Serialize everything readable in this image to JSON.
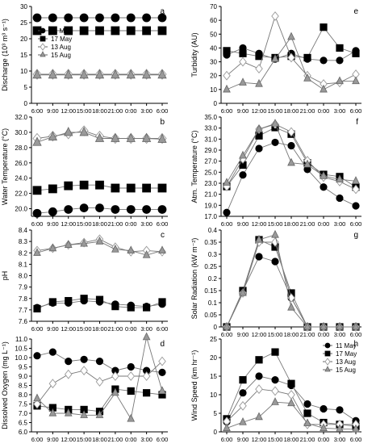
{
  "x_ticks": [
    "6:00",
    "9:00",
    "12:00",
    "15:00",
    "18:00",
    "21:00",
    "0:00",
    "3:00",
    "6:00"
  ],
  "series_names": [
    "11 May",
    "17 May",
    "13 Aug",
    "15 Aug"
  ],
  "colors": {
    "may11": "#000000",
    "may17": "#000000",
    "aug13": "#999999",
    "aug15": "#999999",
    "axis": "#000000"
  },
  "markers": [
    "filled-circle",
    "filled-square",
    "open-diamond",
    "filled-triangle"
  ],
  "chart_data": [
    {
      "type": "line",
      "panel": "a",
      "ylabel": "Discharge (10³ m³ s⁻¹)",
      "ylim": [
        0,
        30
      ],
      "yticks": [
        0,
        5,
        10,
        15,
        20,
        25,
        30
      ],
      "legend": "left",
      "series": [
        {
          "name": "11 May",
          "values": [
            26.5,
            26.5,
            26.5,
            26.5,
            26.5,
            26.5,
            26.5,
            26.5,
            26.5
          ]
        },
        {
          "name": "17 May",
          "values": [
            22.5,
            22.5,
            22.5,
            22.5,
            22.5,
            22.5,
            22.5,
            22.5,
            22.5
          ]
        },
        {
          "name": "13 Aug",
          "values": [
            9,
            9,
            9,
            9,
            9,
            9,
            9,
            9,
            9
          ]
        },
        {
          "name": "15 Aug",
          "values": [
            8.8,
            8.8,
            8.8,
            8.8,
            8.8,
            8.8,
            8.8,
            8.8,
            8.8
          ]
        }
      ]
    },
    {
      "type": "line",
      "panel": "e",
      "ylabel": "Turbidity (AU)",
      "ylim": [
        0,
        70
      ],
      "yticks": [
        0,
        10,
        20,
        30,
        40,
        50,
        60,
        70
      ],
      "series": [
        {
          "name": "11 May",
          "values": [
            35,
            40,
            36,
            32,
            36,
            32,
            31,
            31,
            38
          ]
        },
        {
          "name": "17 May",
          "values": [
            38,
            36,
            34,
            33,
            34,
            33,
            55,
            40,
            36
          ]
        },
        {
          "name": "13 Aug",
          "values": [
            20,
            30,
            25,
            63,
            33,
            20,
            14,
            15,
            21
          ]
        },
        {
          "name": "15 Aug",
          "values": [
            10,
            15,
            14,
            32,
            48,
            18,
            10,
            16,
            16
          ]
        }
      ]
    },
    {
      "type": "line",
      "panel": "b",
      "ylabel": "Water Temperature (°C)",
      "ylim": [
        19,
        32
      ],
      "yticks": [
        20,
        22,
        24,
        26,
        28,
        30,
        32
      ],
      "series": [
        {
          "name": "11 May",
          "values": [
            19.4,
            19.6,
            19.9,
            20.1,
            20.1,
            19.9,
            19.9,
            19.9,
            19.9
          ]
        },
        {
          "name": "17 May",
          "values": [
            22.4,
            22.6,
            23,
            23.1,
            23.1,
            22.7,
            22.7,
            22.7,
            22.7
          ]
        },
        {
          "name": "13 Aug",
          "values": [
            29.2,
            29.5,
            29.8,
            30.2,
            29.5,
            29.2,
            29.2,
            29.2,
            29.2
          ]
        },
        {
          "name": "15 Aug",
          "values": [
            28.7,
            29.4,
            30,
            30,
            29.2,
            29.2,
            29.2,
            29.2,
            29.1
          ]
        }
      ]
    },
    {
      "type": "line",
      "panel": "f",
      "ylabel": "Atm. Temperature (°C)",
      "ylim": [
        17,
        35
      ],
      "yticks": [
        17,
        19,
        21,
        23,
        25,
        27,
        29,
        31,
        33,
        35
      ],
      "series": [
        {
          "name": "11 May",
          "values": [
            17.7,
            24.5,
            29.3,
            30.4,
            29.8,
            25.5,
            22.3,
            20.3,
            18.9
          ]
        },
        {
          "name": "17 May",
          "values": [
            22.4,
            26.3,
            31.6,
            33.1,
            31.9,
            26.7,
            24.6,
            24.2,
            22.3
          ]
        },
        {
          "name": "13 Aug",
          "values": [
            22.4,
            27.4,
            32.8,
            33.7,
            32.3,
            27.1,
            24.1,
            23.3,
            21.9
          ]
        },
        {
          "name": "15 Aug",
          "values": [
            23.1,
            28,
            32.8,
            33.8,
            26.7,
            26.4,
            24.3,
            23.7,
            23.4
          ]
        }
      ]
    },
    {
      "type": "line",
      "panel": "c",
      "ylabel": "pH",
      "ylim": [
        7.6,
        8.4
      ],
      "yticks": [
        7.6,
        7.7,
        7.8,
        7.9,
        8.0,
        8.1,
        8.2,
        8.3,
        8.4
      ],
      "series": [
        {
          "name": "11 May",
          "values": [
            7.72,
            7.76,
            7.76,
            7.78,
            7.77,
            7.75,
            7.74,
            7.73,
            7.75
          ]
        },
        {
          "name": "17 May",
          "values": [
            7.71,
            7.77,
            7.78,
            7.8,
            7.79,
            7.73,
            7.72,
            7.72,
            7.77
          ]
        },
        {
          "name": "13 Aug",
          "values": [
            8.22,
            8.24,
            8.27,
            8.29,
            8.32,
            8.25,
            8.21,
            8.22,
            8.21
          ]
        },
        {
          "name": "15 Aug",
          "values": [
            8.2,
            8.24,
            8.27,
            8.28,
            8.3,
            8.23,
            8.22,
            8.18,
            8.22
          ]
        }
      ]
    },
    {
      "type": "line",
      "panel": "g",
      "ylabel": "Solar Radiation (kW m⁻²)",
      "ylim": [
        0,
        0.4
      ],
      "yticks": [
        0,
        0.05,
        0.1,
        0.15,
        0.2,
        0.25,
        0.3,
        0.35,
        0.4
      ],
      "series": [
        {
          "name": "11 May",
          "values": [
            0,
            0.15,
            0.29,
            0.27,
            0.12,
            0,
            0,
            0,
            0
          ]
        },
        {
          "name": "17 May",
          "values": [
            0,
            0.15,
            0.36,
            0.33,
            0.14,
            0,
            0,
            0,
            0
          ]
        },
        {
          "name": "13 Aug",
          "values": [
            0,
            0.14,
            0.35,
            0.35,
            0.12,
            0,
            0,
            0,
            0
          ]
        },
        {
          "name": "15 Aug",
          "values": [
            0,
            0.14,
            0.36,
            0.38,
            0.08,
            0,
            0,
            0,
            0
          ]
        }
      ]
    },
    {
      "type": "line",
      "panel": "d",
      "ylabel": "Dissolved Oxygen (mg L⁻¹)",
      "ylim": [
        6,
        11
      ],
      "yticks": [
        6,
        6.5,
        7,
        7.5,
        8,
        8.5,
        9,
        9.5,
        10,
        10.5,
        11
      ],
      "series": [
        {
          "name": "11 May",
          "values": [
            10.1,
            10.3,
            9.8,
            9.9,
            9.8,
            9.3,
            9.5,
            9.3,
            9.2
          ]
        },
        {
          "name": "17 May",
          "values": [
            7.4,
            7.3,
            7.2,
            7.2,
            7.1,
            8.3,
            8.2,
            8.1,
            8.0
          ]
        },
        {
          "name": "13 Aug",
          "values": [
            7.5,
            8.6,
            9.1,
            9.3,
            8.7,
            9.0,
            9.0,
            9.0,
            9.8
          ]
        },
        {
          "name": "15 Aug",
          "values": [
            7.8,
            7.0,
            7.0,
            6.9,
            6.9,
            8.1,
            6.7,
            11.1,
            8.2
          ]
        }
      ]
    },
    {
      "type": "line",
      "panel": "h",
      "ylabel": "Wind Speed (km hr⁻¹)",
      "ylim": [
        0,
        25
      ],
      "yticks": [
        0,
        5,
        10,
        15,
        20,
        25
      ],
      "legend": "top-right",
      "series": [
        {
          "name": "11 May",
          "values": [
            2.7,
            10.5,
            15,
            14,
            12.5,
            7.5,
            6.2,
            5.9,
            3
          ]
        },
        {
          "name": "17 May",
          "values": [
            3.5,
            14,
            19.4,
            21.5,
            13,
            5,
            2.5,
            2,
            1.5
          ]
        },
        {
          "name": "13 Aug",
          "values": [
            2.8,
            7,
            11.5,
            11,
            10,
            2,
            2,
            2,
            2
          ]
        },
        {
          "name": "15 Aug",
          "values": [
            1,
            2.6,
            4,
            8,
            7.7,
            2.3,
            1,
            0.8,
            0.7
          ]
        }
      ]
    }
  ]
}
